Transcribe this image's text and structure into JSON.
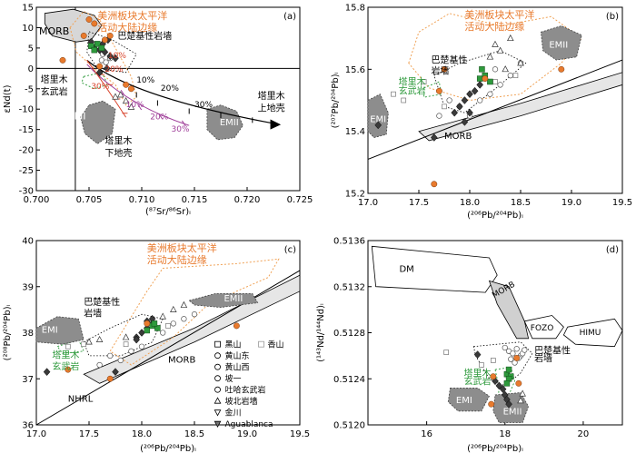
{
  "chart_data": [
    {
      "panel": "(a)",
      "type": "scatter",
      "xlabel": "(⁸⁷Sr/⁸⁶Sr)ᵢ",
      "ylabel": "εNd(t)",
      "xlim": [
        0.7,
        0.725
      ],
      "ylim": [
        -30,
        15
      ],
      "xticks": [
        "0.700",
        "0.705",
        "0.710",
        "0.715",
        "0.720",
        "0.725"
      ],
      "yticks": [
        "15",
        "10",
        "5",
        "0",
        "-5",
        "-10",
        "-15",
        "-20",
        "-25",
        "-30"
      ],
      "fields": [
        "MORB",
        "EMI",
        "EMII"
      ],
      "annotations": [
        "美洲板块太平洋",
        "活动大陆边缘",
        "巴楚基性岩墙",
        "塔里木",
        "玄武岩",
        "塔里木",
        "下地壳",
        "塔里木",
        "上地壳"
      ],
      "mixing_labels_black": [
        "10%",
        "20%",
        "30%"
      ],
      "mixing_labels_purple": [
        "10%",
        "20%",
        "30%"
      ],
      "mixing_labels_red": [
        "10%",
        "20%",
        "30%"
      ],
      "reference_lines": {
        "x": 0.7037,
        "y": 0
      },
      "points": {
        "orange": [
          [
            0.7025,
            2
          ],
          [
            0.7045,
            8
          ],
          [
            0.705,
            12
          ],
          [
            0.7055,
            11
          ],
          [
            0.706,
            0.5
          ],
          [
            0.7065,
            7
          ],
          [
            0.707,
            8
          ],
          [
            0.7085,
            -4
          ],
          [
            0.709,
            -5
          ]
        ],
        "dark_diamond": [
          [
            0.7052,
            6.5
          ],
          [
            0.7055,
            5
          ],
          [
            0.706,
            4.5
          ],
          [
            0.7063,
            6
          ],
          [
            0.7065,
            4
          ],
          [
            0.7068,
            7
          ],
          [
            0.707,
            3
          ],
          [
            0.706,
            -1
          ],
          [
            0.7075,
            2.5
          ],
          [
            0.7067,
            0
          ]
        ],
        "green_square": [
          [
            0.7052,
            5.5
          ],
          [
            0.7055,
            4.5
          ],
          [
            0.7058,
            6
          ],
          [
            0.7062,
            5
          ]
        ],
        "open_triangle": [
          [
            0.708,
            -6.5
          ],
          [
            0.7085,
            -8
          ],
          [
            0.709,
            -9.5
          ],
          [
            0.7075,
            -7
          ]
        ],
        "open_circle": [
          [
            0.7062,
            2
          ],
          [
            0.7066,
            1.5
          ],
          [
            0.707,
            2.5
          ],
          [
            0.7063,
            3.5
          ]
        ]
      }
    },
    {
      "panel": "(b)",
      "type": "scatter",
      "xlabel": "(²⁰⁶Pb/²⁰⁴Pb)ᵢ",
      "ylabel": "(²⁰⁷Pb/²⁰⁴Pb)ᵢ",
      "xlim": [
        17.0,
        19.5
      ],
      "ylim": [
        15.2,
        15.8
      ],
      "xticks": [
        "17.0",
        "17.5",
        "18.0",
        "18.5",
        "19.0",
        "19.5"
      ],
      "yticks": [
        "15.2",
        "15.4",
        "15.6",
        "15.8"
      ],
      "fields": [
        "EMI",
        "EMII",
        "MORB"
      ],
      "annotations": [
        "美洲板块太平洋",
        "活动大陆边缘",
        "巴楚基性",
        "岩墙",
        "塔里木",
        "玄武岩"
      ],
      "points": {
        "orange": [
          [
            17.65,
            15.23
          ],
          [
            17.7,
            15.53
          ],
          [
            17.75,
            15.6
          ],
          [
            18.9,
            15.6
          ],
          [
            18.15,
            15.57
          ]
        ],
        "dark_diamond": [
          [
            17.1,
            15.42
          ],
          [
            17.65,
            15.38
          ],
          [
            17.9,
            15.48
          ],
          [
            17.95,
            15.5
          ],
          [
            18.0,
            15.52
          ],
          [
            18.05,
            15.53
          ],
          [
            18.1,
            15.55
          ],
          [
            17.85,
            15.46
          ],
          [
            17.95,
            15.43
          ],
          [
            18.0,
            15.46
          ]
        ],
        "green_square": [
          [
            18.1,
            15.57
          ],
          [
            18.15,
            15.58
          ],
          [
            18.2,
            15.56
          ],
          [
            18.12,
            15.6
          ]
        ],
        "open_triangle": [
          [
            18.25,
            15.68
          ],
          [
            18.3,
            15.66
          ],
          [
            18.4,
            15.7
          ],
          [
            18.2,
            15.64
          ],
          [
            18.5,
            15.62
          ],
          [
            18.35,
            15.6
          ]
        ],
        "open_circle": [
          [
            17.8,
            15.5
          ],
          [
            17.9,
            15.48
          ],
          [
            18.0,
            15.45
          ],
          [
            18.1,
            15.5
          ],
          [
            18.2,
            15.52
          ],
          [
            18.3,
            15.55
          ],
          [
            18.4,
            15.58
          ],
          [
            18.5,
            15.62
          ],
          [
            17.7,
            15.45
          ],
          [
            18.25,
            15.6
          ]
        ],
        "open_square": [
          [
            17.25,
            15.52
          ],
          [
            17.35,
            15.5
          ],
          [
            17.55,
            15.56
          ],
          [
            17.75,
            15.48
          ],
          [
            18.25,
            15.56
          ],
          [
            18.45,
            15.58
          ]
        ]
      }
    },
    {
      "panel": "(c)",
      "type": "scatter",
      "xlabel": "(²⁰⁶Pb/²⁰⁴Pb)ᵢ",
      "ylabel": "(²⁰⁸Pb/²⁰⁴Pb)ᵢ",
      "xlim": [
        17.0,
        19.5
      ],
      "ylim": [
        36,
        40
      ],
      "xticks": [
        "17.0",
        "17.5",
        "18.0",
        "18.5",
        "19.0",
        "19.5"
      ],
      "yticks": [
        "36",
        "37",
        "38",
        "39",
        "40"
      ],
      "fields": [
        "EMI",
        "EMII",
        "MORB"
      ],
      "annotations": [
        "美洲板块太平洋",
        "活动大陆边缘",
        "巴楚基性",
        "岩墙",
        "塔里木",
        "玄武岩",
        "NHRL"
      ],
      "legend": [
        "黑山",
        "香山",
        "黄山东",
        "黄山西",
        "坡一",
        "吐哈玄武岩",
        "坡北岩墙",
        "金川",
        "Aguablanca"
      ],
      "points": {
        "orange": [
          [
            17.3,
            37.2
          ],
          [
            17.7,
            37.0
          ],
          [
            18.05,
            38.2
          ],
          [
            18.9,
            38.15
          ]
        ],
        "dark_diamond": [
          [
            17.1,
            37.15
          ],
          [
            17.75,
            37.15
          ],
          [
            17.95,
            37.9
          ],
          [
            18.0,
            38.0
          ],
          [
            18.05,
            38.1
          ],
          [
            18.1,
            38.2
          ],
          [
            17.95,
            37.85
          ],
          [
            18.05,
            38.25
          ],
          [
            18.1,
            38.3
          ]
        ],
        "green_square": [
          [
            18.05,
            38.05
          ],
          [
            18.1,
            38.15
          ],
          [
            18.15,
            38.1
          ],
          [
            18.12,
            38.2
          ]
        ],
        "open_triangle": [
          [
            17.5,
            37.8
          ],
          [
            17.6,
            37.85
          ],
          [
            18.2,
            38.35
          ],
          [
            18.3,
            38.5
          ],
          [
            18.4,
            38.6
          ],
          [
            17.85,
            37.9
          ]
        ],
        "open_circle": [
          [
            17.6,
            37.3
          ],
          [
            17.8,
            37.4
          ],
          [
            17.9,
            37.6
          ],
          [
            18.0,
            37.7
          ],
          [
            18.2,
            38.0
          ],
          [
            18.3,
            38.2
          ],
          [
            18.4,
            38.3
          ],
          [
            18.5,
            38.4
          ],
          [
            17.7,
            37.5
          ]
        ],
        "open_square": [
          [
            17.3,
            37.7
          ],
          [
            17.45,
            37.75
          ],
          [
            17.85,
            37.75
          ],
          [
            18.25,
            38.15
          ]
        ]
      }
    },
    {
      "panel": "(d)",
      "type": "scatter",
      "xlabel": "(²⁰⁶Pb/²⁰⁴Pb)ᵢ",
      "ylabel": "(¹⁴³Nd/¹⁴⁴Nd)ᵢ",
      "xlim": [
        14.5,
        21
      ],
      "ylim": [
        0.512,
        0.5136
      ],
      "xticks": [
        "16",
        "18",
        "20"
      ],
      "yticks": [
        "0.5120",
        "0.5124",
        "0.5128",
        "0.5132",
        "0.5136"
      ],
      "fields": [
        "DM",
        "MORB",
        "FOZO",
        "HIMU",
        "EMI",
        "EMII"
      ],
      "annotations": [
        "巴楚基性",
        "岩墙",
        "塔里木",
        "玄武岩"
      ],
      "points": {
        "orange": [
          [
            17.65,
            0.51218
          ],
          [
            18.3,
            0.51258
          ],
          [
            17.7,
            0.51242
          ],
          [
            18.35,
            0.51236
          ]
        ],
        "dark_diamond": [
          [
            17.3,
            0.51261
          ],
          [
            17.75,
            0.51238
          ],
          [
            17.85,
            0.51234
          ],
          [
            18.0,
            0.51226
          ],
          [
            18.05,
            0.51222
          ],
          [
            18.1,
            0.51218
          ],
          [
            17.95,
            0.51231
          ]
        ],
        "green_square": [
          [
            18.05,
            0.51244
          ],
          [
            18.1,
            0.51248
          ],
          [
            18.15,
            0.51242
          ],
          [
            18.1,
            0.5124
          ],
          [
            18.05,
            0.51236
          ]
        ],
        "open_triangle": [
          [
            18.4,
            0.51221
          ],
          [
            18.45,
            0.51227
          ]
        ],
        "open_circle": [
          [
            18.0,
            0.51267
          ],
          [
            18.1,
            0.51264
          ],
          [
            18.2,
            0.51262
          ],
          [
            18.3,
            0.51266
          ],
          [
            18.4,
            0.5126
          ],
          [
            18.15,
            0.51257
          ],
          [
            18.25,
            0.51254
          ],
          [
            18.35,
            0.51258
          ],
          [
            18.45,
            0.51262
          ],
          [
            18.5,
            0.51265
          ]
        ],
        "open_square": [
          [
            16.5,
            0.51263
          ],
          [
            17.4,
            0.51252
          ],
          [
            17.7,
            0.51256
          ]
        ]
      }
    }
  ],
  "colors": {
    "orange": "#e87a2d",
    "dark": "#3a3a3a",
    "green": "#2e9a3c",
    "purple": "#a0409a",
    "red": "#d8442d",
    "field_gray": "#8d8d8d",
    "band": "#e6e6e6",
    "orange_dash": "#f0a256",
    "green_dash": "#2e9a3c"
  }
}
